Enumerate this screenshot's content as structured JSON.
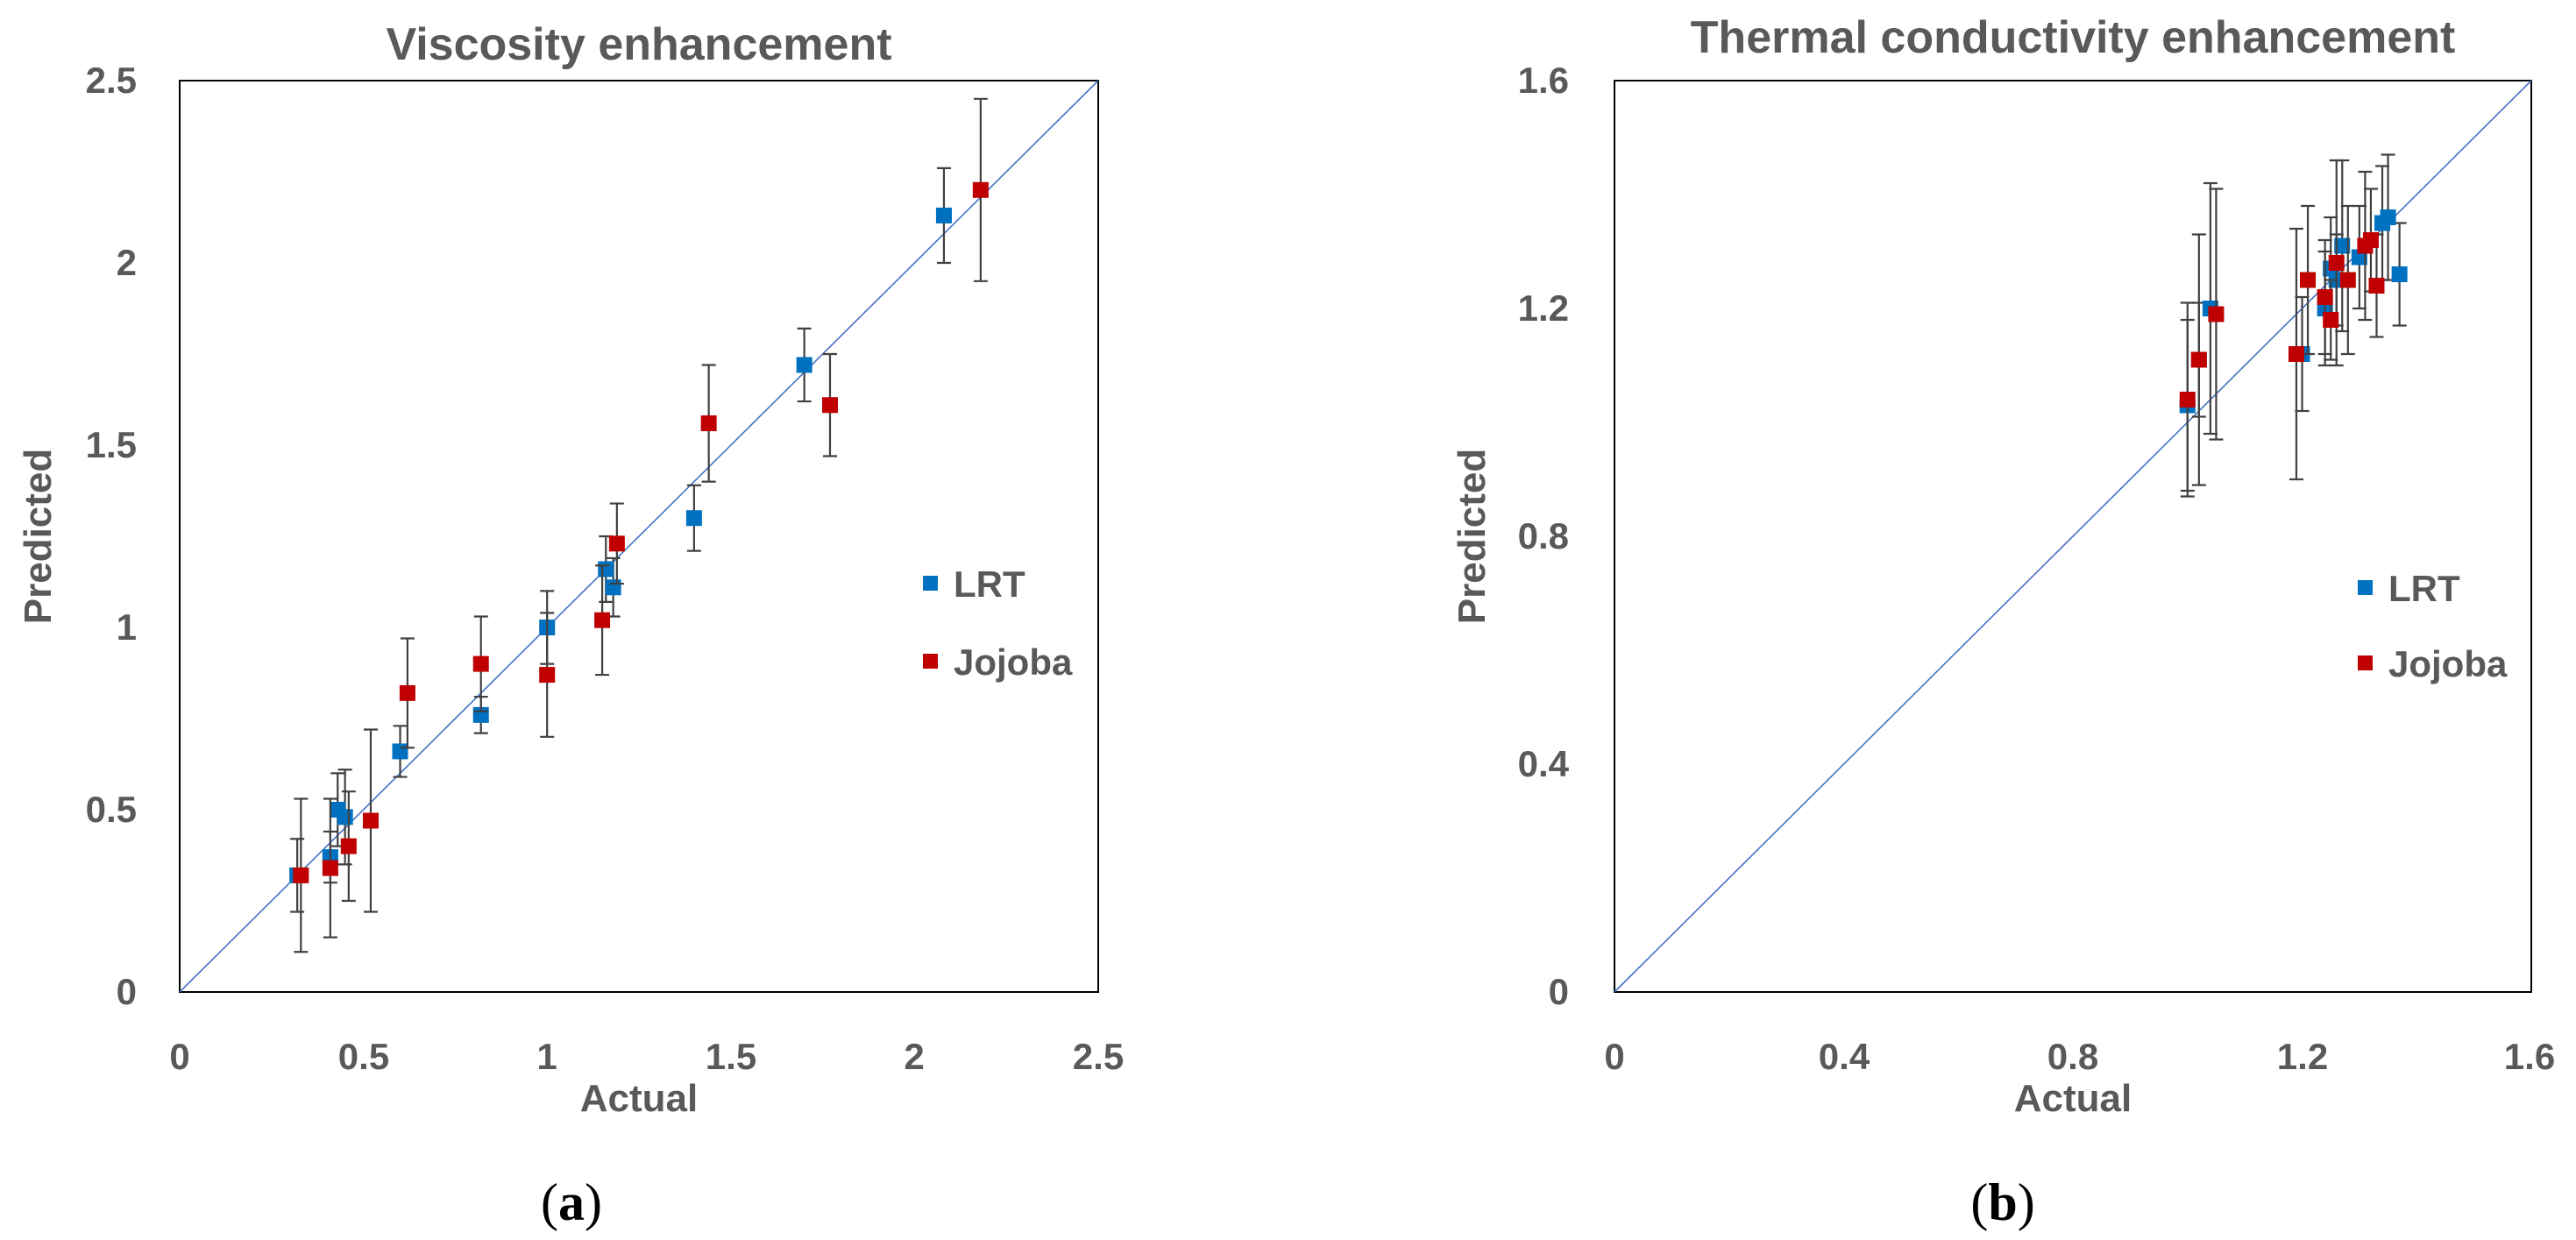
{
  "colors": {
    "lrt": "#0070C0",
    "jojoba": "#C00000",
    "diagonal": "#4472C4",
    "error_bar": "#404040",
    "frame": "#000000"
  },
  "chart_data": [
    {
      "type": "scatter",
      "title": "Viscosity enhancement",
      "xlabel": "Actual",
      "ylabel": "Predicted",
      "xlim": [
        0,
        2.5
      ],
      "ylim": [
        0,
        2.5
      ],
      "xticks": [
        "0",
        "0.5",
        "1",
        "1.5",
        "2",
        "2.5"
      ],
      "yticks": [
        "0",
        "0.5",
        "1",
        "1.5",
        "2",
        "2.5"
      ],
      "legend_position": "center-right",
      "panel_label": "a",
      "diagonal": "y = x",
      "series": [
        {
          "name": "LRT",
          "color": "#0070C0",
          "points": [
            {
              "x": 0.32,
              "y": 0.32,
              "err": 0.1
            },
            {
              "x": 0.41,
              "y": 0.37,
              "err": 0.07
            },
            {
              "x": 0.43,
              "y": 0.5,
              "err": 0.1
            },
            {
              "x": 0.45,
              "y": 0.48,
              "err": 0.13
            },
            {
              "x": 0.6,
              "y": 0.66,
              "err": 0.07
            },
            {
              "x": 0.82,
              "y": 0.76,
              "err": 0.05
            },
            {
              "x": 1.0,
              "y": 1.0,
              "err": 0.1
            },
            {
              "x": 1.16,
              "y": 1.16,
              "err": 0.09
            },
            {
              "x": 1.18,
              "y": 1.11,
              "err": 0.08
            },
            {
              "x": 1.4,
              "y": 1.3,
              "err": 0.09
            },
            {
              "x": 1.7,
              "y": 1.72,
              "err": 0.1
            },
            {
              "x": 2.08,
              "y": 2.13,
              "err": 0.13
            }
          ]
        },
        {
          "name": "Jojoba",
          "color": "#C00000",
          "points": [
            {
              "x": 0.33,
              "y": 0.32,
              "err": 0.21
            },
            {
              "x": 0.41,
              "y": 0.34,
              "err": 0.19
            },
            {
              "x": 0.46,
              "y": 0.4,
              "err": 0.15
            },
            {
              "x": 0.52,
              "y": 0.47,
              "err": 0.25
            },
            {
              "x": 0.62,
              "y": 0.82,
              "err": 0.15
            },
            {
              "x": 0.82,
              "y": 0.9,
              "err": 0.13
            },
            {
              "x": 1.0,
              "y": 0.87,
              "err": 0.17
            },
            {
              "x": 1.15,
              "y": 1.02,
              "err": 0.15
            },
            {
              "x": 1.19,
              "y": 1.23,
              "err": 0.11
            },
            {
              "x": 1.44,
              "y": 1.56,
              "err": 0.16
            },
            {
              "x": 1.77,
              "y": 1.61,
              "err": 0.14
            },
            {
              "x": 2.18,
              "y": 2.2,
              "err": 0.25
            }
          ]
        }
      ]
    },
    {
      "type": "scatter",
      "title": "Thermal conductivity enhancement",
      "xlabel": "Actual",
      "ylabel": "Predicted",
      "xlim": [
        0,
        1.6
      ],
      "ylim": [
        0,
        1.6
      ],
      "xticks": [
        "0",
        "0.4",
        "0.8",
        "1.2",
        "1.6"
      ],
      "yticks": [
        "0",
        "0.4",
        "0.8",
        "1.2",
        "1.6"
      ],
      "legend_position": "center-right",
      "panel_label": "b",
      "diagonal": "y = x",
      "series": [
        {
          "name": "LRT",
          "color": "#0070C0",
          "points": [
            {
              "x": 1.0,
              "y": 1.03,
              "err": 0.15
            },
            {
              "x": 1.02,
              "y": 1.11,
              "err": 0.1
            },
            {
              "x": 1.04,
              "y": 1.2,
              "err": 0.22
            },
            {
              "x": 1.2,
              "y": 1.12,
              "err": 0.1
            },
            {
              "x": 1.24,
              "y": 1.2,
              "err": 0.1
            },
            {
              "x": 1.25,
              "y": 1.27,
              "err": 0.09
            },
            {
              "x": 1.26,
              "y": 1.25,
              "err": 0.08
            },
            {
              "x": 1.27,
              "y": 1.31,
              "err": 0.15
            },
            {
              "x": 1.3,
              "y": 1.29,
              "err": 0.09
            },
            {
              "x": 1.34,
              "y": 1.35,
              "err": 0.1
            },
            {
              "x": 1.35,
              "y": 1.36,
              "err": 0.11
            },
            {
              "x": 1.37,
              "y": 1.26,
              "err": 0.09
            }
          ]
        },
        {
          "name": "Jojoba",
          "color": "#C00000",
          "points": [
            {
              "x": 1.0,
              "y": 1.04,
              "err": 0.17
            },
            {
              "x": 1.02,
              "y": 1.11,
              "err": 0.22
            },
            {
              "x": 1.05,
              "y": 1.19,
              "err": 0.22
            },
            {
              "x": 1.19,
              "y": 1.12,
              "err": 0.22
            },
            {
              "x": 1.21,
              "y": 1.25,
              "err": 0.13
            },
            {
              "x": 1.24,
              "y": 1.22,
              "err": 0.1
            },
            {
              "x": 1.25,
              "y": 1.18,
              "err": 0.07
            },
            {
              "x": 1.26,
              "y": 1.28,
              "err": 0.18
            },
            {
              "x": 1.28,
              "y": 1.25,
              "err": 0.13
            },
            {
              "x": 1.31,
              "y": 1.31,
              "err": 0.13
            },
            {
              "x": 1.32,
              "y": 1.32,
              "err": 0.09
            },
            {
              "x": 1.33,
              "y": 1.24,
              "err": 0.09
            }
          ]
        }
      ]
    }
  ]
}
